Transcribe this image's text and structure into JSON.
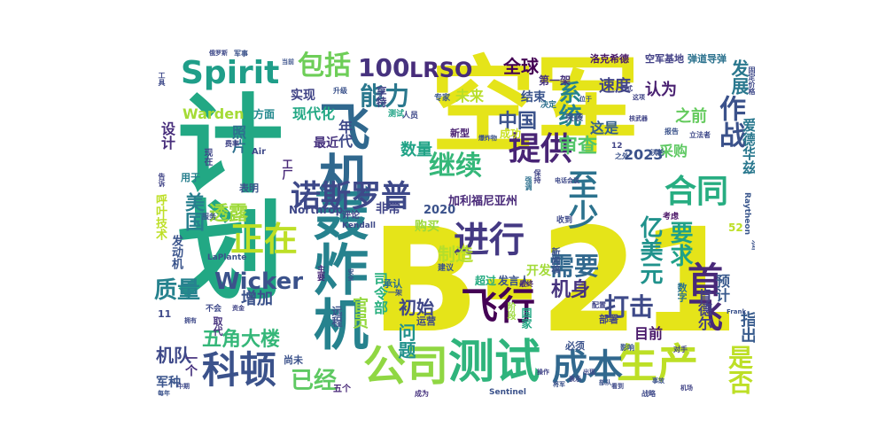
{
  "cloud": {
    "words": [
      {
        "text": "空军",
        "color": "#e5e419"
      },
      {
        "text": "计划",
        "color": "#22a884"
      },
      {
        "text": "B-21",
        "color": "#e5e419"
      },
      {
        "text": "轰炸机",
        "color": "#26828e"
      },
      {
        "text": "飞机",
        "color": "#30688e"
      },
      {
        "text": "公司",
        "color": "#90d743"
      },
      {
        "text": "测试",
        "color": "#2fb47c"
      },
      {
        "text": "生产",
        "color": "#bddf26"
      },
      {
        "text": "进行",
        "color": "#443983"
      },
      {
        "text": "科顿",
        "color": "#3b528b"
      },
      {
        "text": "成本",
        "color": "#31688e"
      },
      {
        "text": "飞行",
        "color": "#440154"
      },
      {
        "text": "首飞",
        "color": "#482878"
      },
      {
        "text": "Spirit",
        "color": "#1f9e89"
      },
      {
        "text": "诺斯罗普",
        "color": "#3e4989"
      },
      {
        "text": "正在",
        "color": "#bddf26"
      },
      {
        "text": "合同",
        "color": "#27ad81"
      },
      {
        "text": "提供",
        "color": "#482475"
      },
      {
        "text": "继续",
        "color": "#35b779"
      },
      {
        "text": "至少",
        "color": "#2c728e"
      },
      {
        "text": "包括",
        "color": "#6ece58"
      },
      {
        "text": "100",
        "color": "#46327e"
      },
      {
        "text": "LRSO",
        "color": "#472c7a"
      },
      {
        "text": "能力",
        "color": "#2a788e"
      },
      {
        "text": "作战",
        "color": "#3b528b"
      },
      {
        "text": "系统",
        "color": "#25838e"
      },
      {
        "text": "打击",
        "color": "#3e4a89"
      },
      {
        "text": "需要",
        "color": "#31688e"
      },
      {
        "text": "亿美元",
        "color": "#20928c"
      },
      {
        "text": "要求",
        "color": "#1fa188"
      },
      {
        "text": "Wicker",
        "color": "#3b528b"
      },
      {
        "text": "质量",
        "color": "#26828e"
      },
      {
        "text": "美国",
        "color": "#277f8e"
      },
      {
        "text": "已经",
        "color": "#5ec962"
      },
      {
        "text": "透露",
        "color": "#9fda3a"
      },
      {
        "text": "五角大楼",
        "color": "#35b779"
      },
      {
        "text": "机队",
        "color": "#3e4989"
      },
      {
        "text": "是否",
        "color": "#bddf26"
      },
      {
        "text": "全球",
        "color": "#440154"
      },
      {
        "text": "中国",
        "color": "#3b528b"
      },
      {
        "text": "审查",
        "color": "#52c569"
      },
      {
        "text": "发展",
        "color": "#2a788e"
      },
      {
        "text": "认为",
        "color": "#481f70"
      },
      {
        "text": "速度",
        "color": "#414487"
      },
      {
        "text": "数量",
        "color": "#20a386"
      },
      {
        "text": "制造",
        "color": "#b5de2b"
      },
      {
        "text": "机身",
        "color": "#46337e"
      },
      {
        "text": "初始",
        "color": "#3f4788"
      },
      {
        "text": "问题",
        "color": "#21918c"
      },
      {
        "text": "Warden",
        "color": "#a5db36"
      },
      {
        "text": "现代化",
        "color": "#22a884"
      },
      {
        "text": "设计",
        "color": "#472d7b"
      },
      {
        "text": "照片",
        "color": "#2d708e"
      },
      {
        "text": "实现",
        "color": "#414487"
      },
      {
        "text": "未来",
        "color": "#b8de29"
      },
      {
        "text": "结束",
        "color": "#3a548c"
      },
      {
        "text": "之前",
        "color": "#65cb5e"
      },
      {
        "text": "这是",
        "color": "#355f8d"
      },
      {
        "text": "采购",
        "color": "#5ec962"
      },
      {
        "text": "2023",
        "color": "#3b528b"
      },
      {
        "text": "爱德华兹",
        "color": "#2a788e"
      },
      {
        "text": "指出",
        "color": "#375a8c"
      },
      {
        "text": "预计",
        "color": "#38598c"
      },
      {
        "text": "肯德尔",
        "color": "#424086"
      },
      {
        "text": "目前",
        "color": "#481769"
      },
      {
        "text": "增加",
        "color": "#3b528b"
      },
      {
        "text": "官员",
        "color": "#95d840"
      },
      {
        "text": "司令部",
        "color": "#2ab07f"
      },
      {
        "text": "Northrop",
        "color": "#3f4889"
      },
      {
        "text": "加利福尼亚州",
        "color": "#482878"
      },
      {
        "text": "2020",
        "color": "#3b528b"
      },
      {
        "text": "非常",
        "color": "#404588"
      },
      {
        "text": "购买",
        "color": "#9bd93c"
      },
      {
        "text": "开发",
        "color": "#a2da37"
      },
      {
        "text": "年代",
        "color": "#3e4989"
      },
      {
        "text": "最近",
        "color": "#46327e"
      },
      {
        "text": "一个",
        "color": "#46327e"
      },
      {
        "text": "军种",
        "color": "#3a548c"
      },
      {
        "text": "现在",
        "color": "#3f4788"
      },
      {
        "text": "超过",
        "color": "#25ab82"
      },
      {
        "text": "发言人",
        "color": "#3b528b"
      },
      {
        "text": "第一架",
        "color": "#46327e"
      },
      {
        "text": "洛克希德",
        "color": "#481769"
      },
      {
        "text": "空军基地",
        "color": "#424086"
      },
      {
        "text": "弹道导弹",
        "color": "#2c728e"
      },
      {
        "text": "方面",
        "color": "#23898e"
      },
      {
        "text": "享特",
        "color": "#414487"
      },
      {
        "text": "成功",
        "color": "#cae11f"
      },
      {
        "text": "新型",
        "color": "#481f70"
      },
      {
        "text": "专家",
        "color": "#39568c"
      },
      {
        "text": "突袭",
        "color": "#3b528b"
      },
      {
        "text": "决定",
        "color": "#2d708e"
      },
      {
        "text": "人员",
        "color": "#3e4989"
      },
      {
        "text": "测试",
        "color": "#20a486"
      },
      {
        "text": "工厂",
        "color": "#482878"
      },
      {
        "text": "表明",
        "color": "#3b528b"
      },
      {
        "text": "用于",
        "color": "#277f8e"
      },
      {
        "text": "呼叶技术",
        "color": "#bddf26"
      },
      {
        "text": "发动机",
        "color": "#3a548c"
      },
      {
        "text": "LaPlante",
        "color": "#3b528b"
      },
      {
        "text": "Kendall",
        "color": "#3e4989"
      },
      {
        "text": "评论",
        "color": "#414487"
      },
      {
        "text": "主要",
        "color": "#482878"
      },
      {
        "text": "Raytheon",
        "color": "#39568c"
      },
      {
        "text": "Sentinel",
        "color": "#3b528b"
      },
      {
        "text": "数字",
        "color": "#2c728e"
      },
      {
        "text": "尚未",
        "color": "#3b528b"
      },
      {
        "text": "五个",
        "color": "#482878"
      },
      {
        "text": "成为",
        "color": "#46327e"
      },
      {
        "text": "战略",
        "color": "#3e4989"
      },
      {
        "text": "对手",
        "color": "#414487"
      },
      {
        "text": "影响",
        "color": "#3a548c"
      },
      {
        "text": "必须",
        "color": "#3b528b"
      },
      {
        "text": "部署",
        "color": "#414487"
      },
      {
        "text": "考虑",
        "color": "#471164"
      },
      {
        "text": "收到",
        "color": "#3e4989"
      },
      {
        "text": "国家",
        "color": "#22a884"
      },
      {
        "text": "阶段",
        "color": "#9bd93c"
      },
      {
        "text": "运营",
        "color": "#3e4989"
      },
      {
        "text": "承认",
        "color": "#2e6f8e"
      },
      {
        "text": "远程",
        "color": "#3b528b"
      },
      {
        "text": "取代",
        "color": "#46327e"
      },
      {
        "text": "不会",
        "color": "#3e4989"
      },
      {
        "text": "一架",
        "color": "#3b528b"
      },
      {
        "text": "最终",
        "color": "#482878"
      },
      {
        "text": "配置",
        "color": "#414487"
      },
      {
        "text": "建议",
        "color": "#3a548c"
      },
      {
        "text": "新闻稿",
        "color": "#3b528b"
      },
      {
        "text": "52",
        "color": "#bddf26"
      },
      {
        "text": "11",
        "color": "#3e4989"
      },
      {
        "text": "试飞",
        "color": "#3b528b"
      },
      {
        "text": "核武器",
        "color": "#414487"
      },
      {
        "text": "爆炸物",
        "color": "#3b528b"
      },
      {
        "text": "Air",
        "color": "#3e4989"
      },
      {
        "text": "12",
        "color": "#414487"
      },
      {
        "text": "之外",
        "color": "#3b528b"
      },
      {
        "text": "沃伦",
        "color": "#3b528b"
      },
      {
        "text": "电话会议",
        "color": "#3e4989"
      },
      {
        "text": "保持",
        "color": "#414487"
      },
      {
        "text": "强调",
        "color": "#2d708e"
      },
      {
        "text": "报告",
        "color": "#3b528b"
      },
      {
        "text": "立法者",
        "color": "#3e4989"
      },
      {
        "text": "Frank",
        "color": "#3b528b"
      },
      {
        "text": "固定价格",
        "color": "#3e4989"
      },
      {
        "text": "这项",
        "color": "#414487"
      },
      {
        "text": "升级",
        "color": "#3b528b"
      },
      {
        "text": "费率",
        "color": "#414487"
      },
      {
        "text": "当前",
        "color": "#3b528b"
      },
      {
        "text": "工具",
        "color": "#3e4989"
      },
      {
        "text": "军事",
        "color": "#3b528b"
      },
      {
        "text": "俄罗斯",
        "color": "#3e4989"
      },
      {
        "text": "告诉",
        "color": "#414487"
      },
      {
        "text": "服务",
        "color": "#3b528b"
      },
      {
        "text": "中期",
        "color": "#3e4989"
      },
      {
        "text": "每年",
        "color": "#3b528b"
      },
      {
        "text": "资金",
        "color": "#414487"
      },
      {
        "text": "安全",
        "color": "#3b528b"
      },
      {
        "text": "拥有",
        "color": "#3e4989"
      },
      {
        "text": "位于",
        "color": "#3b528b"
      },
      {
        "text": "方式",
        "color": "#414487"
      },
      {
        "text": "部队",
        "color": "#3b528b"
      },
      {
        "text": "看到",
        "color": "#3e4989"
      },
      {
        "text": "操作",
        "color": "#414487"
      },
      {
        "text": "将军",
        "color": "#3b528b"
      },
      {
        "text": "表示",
        "color": "#414487"
      },
      {
        "text": "出现",
        "color": "#3e4989"
      },
      {
        "text": "事故",
        "color": "#3b528b"
      },
      {
        "text": "机场",
        "color": "#414487"
      }
    ]
  }
}
